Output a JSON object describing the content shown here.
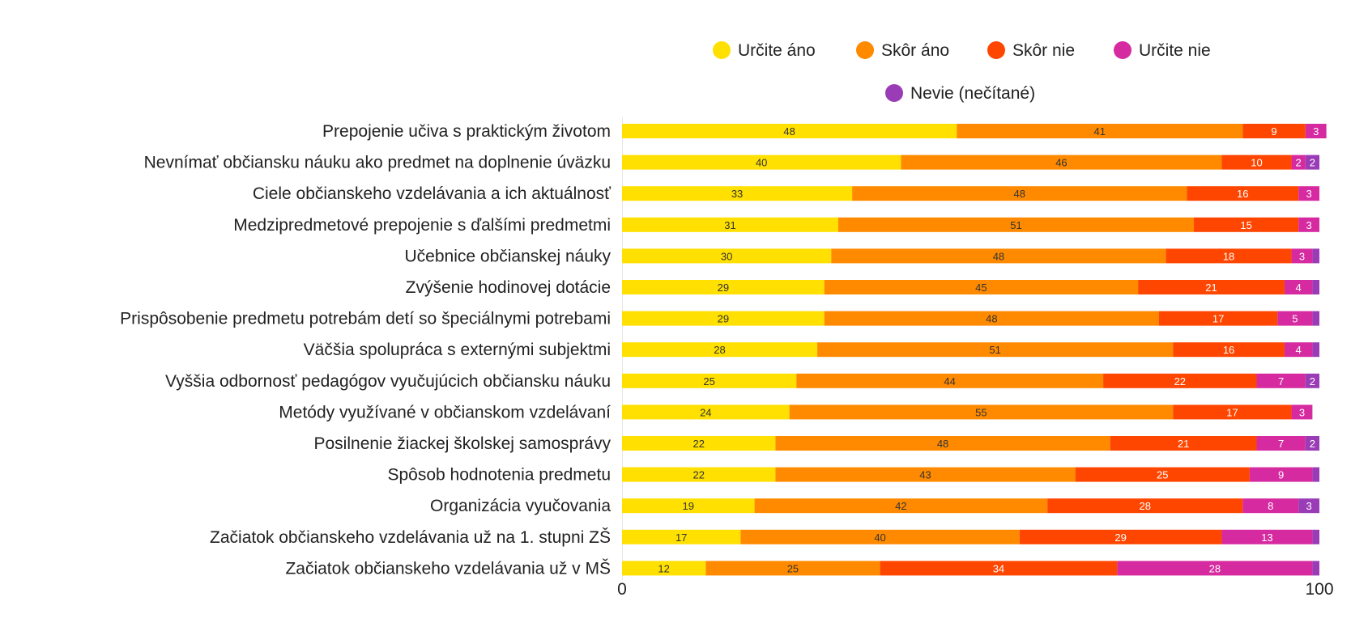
{
  "chart_data": {
    "type": "bar",
    "orientation": "horizontal",
    "stacked": true,
    "title": "",
    "xlabel": "",
    "ylabel": "",
    "xlim": [
      0,
      100
    ],
    "x_ticks": [
      "0",
      "100"
    ],
    "grid": false,
    "legend_position": "top",
    "categories": [
      "Prepojenie učiva s praktickým životom",
      "Nevnímať občiansku náuku ako predmet na doplnenie úväzku",
      "Ciele občianskeho vzdelávania a ich aktuálnosť",
      "Medzipredmetové prepojenie s ďalšími predmetmi",
      "Učebnice občianskej náuky",
      "Zvýšenie hodinovej dotácie",
      "Prispôsobenie predmetu potrebám detí so špeciálnymi potrebami",
      "Väčšia spolupráca s externými subjektmi",
      "Vyššia odbornosť pedagógov vyučujúcich občiansku náuku",
      "Metódy využívané v občianskom vzdelávaní",
      "Posilnenie žiackej školskej samosprávy",
      "Spôsob hodnotenia predmetu",
      "Organizácia vyučovania",
      "Začiatok občianskeho vzdelávania už na 1. stupni ZŠ",
      "Začiatok občianskeho vzdelávania už v MŠ"
    ],
    "series": [
      {
        "name": "Určite áno",
        "color": "#FFE000",
        "values": [
          48,
          40,
          33,
          31,
          30,
          29,
          29,
          28,
          25,
          24,
          22,
          22,
          19,
          17,
          12
        ]
      },
      {
        "name": "Skôr áno",
        "color": "#FF8A00",
        "values": [
          41,
          46,
          48,
          51,
          48,
          45,
          48,
          51,
          44,
          55,
          48,
          43,
          42,
          40,
          25
        ]
      },
      {
        "name": "Skôr nie",
        "color": "#FF4600",
        "values": [
          9,
          10,
          16,
          15,
          18,
          21,
          17,
          16,
          22,
          17,
          21,
          25,
          28,
          29,
          34
        ]
      },
      {
        "name": "Určite nie",
        "color": "#D62AA0",
        "values": [
          3,
          2,
          3,
          3,
          3,
          4,
          5,
          4,
          7,
          3,
          7,
          9,
          8,
          13,
          28
        ]
      },
      {
        "name": "Nevie (nečítané)",
        "color": "#9A3CB6",
        "values": [
          0,
          2,
          0,
          0,
          1,
          1,
          1,
          1,
          2,
          0,
          2,
          1,
          3,
          1,
          1
        ]
      }
    ],
    "data_labels": [
      [
        "48",
        "41",
        "9",
        "3",
        ""
      ],
      [
        "40",
        "46",
        "10",
        "2",
        "2"
      ],
      [
        "33",
        "48",
        "16",
        "3",
        ""
      ],
      [
        "31",
        "51",
        "15",
        "3",
        ""
      ],
      [
        "30",
        "48",
        "18",
        "3",
        ""
      ],
      [
        "29",
        "45",
        "21",
        "4",
        ""
      ],
      [
        "29",
        "48",
        "17",
        "5",
        ""
      ],
      [
        "28",
        "51",
        "16",
        "4",
        ""
      ],
      [
        "25",
        "44",
        "22",
        "7",
        "2"
      ],
      [
        "24",
        "55",
        "17",
        "3",
        ""
      ],
      [
        "22",
        "48",
        "21",
        "7",
        "2"
      ],
      [
        "22",
        "43",
        "25",
        "9",
        ""
      ],
      [
        "19",
        "42",
        "28",
        "8",
        "3"
      ],
      [
        "17",
        "40",
        "29",
        "13",
        ""
      ],
      [
        "12",
        "25",
        "34",
        "28",
        ""
      ]
    ]
  }
}
